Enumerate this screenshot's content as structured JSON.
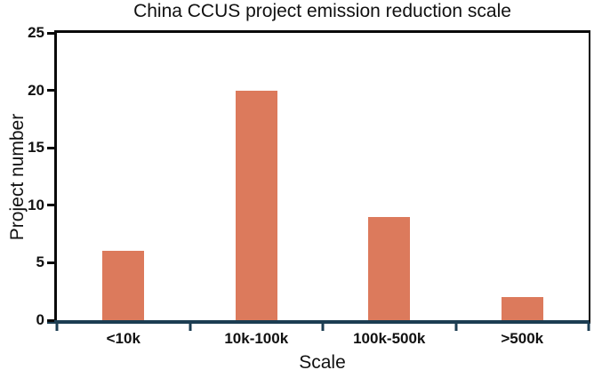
{
  "chart_data": {
    "type": "bar",
    "title": "China CCUS project emission reduction scale",
    "categories": [
      "<10k",
      "10k-100k",
      "100k-500k",
      ">500k"
    ],
    "values": [
      6,
      20,
      9,
      2
    ],
    "xlabel": "Scale",
    "ylabel": "Project number",
    "ylim": [
      0,
      25
    ],
    "yticks": [
      0,
      5,
      10,
      15,
      20,
      25
    ],
    "grid": false,
    "legend": null,
    "bar_color": "#dc7a5c",
    "frame_color": "#0a0a0a",
    "baseline_color": "#1c3d52"
  }
}
